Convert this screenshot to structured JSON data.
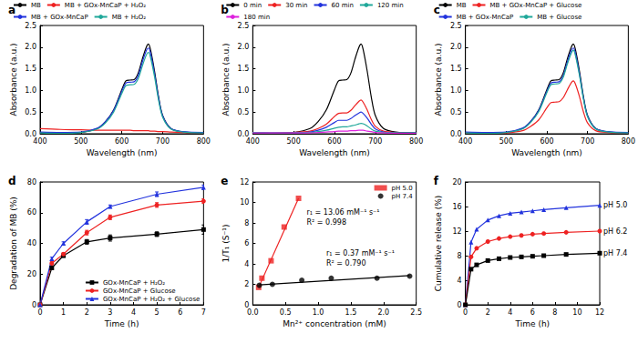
{
  "chart_data": [
    {
      "type": "line",
      "title": "a",
      "x_label": "Wavelength (nm)",
      "y_label": "Absorbance (a.u.)",
      "x": [
        400,
        450,
        500,
        540,
        560,
        580,
        600,
        610,
        620,
        630,
        640,
        650,
        660,
        665,
        670,
        680,
        690,
        700,
        720,
        750,
        800
      ],
      "series": [
        {
          "name": "MB",
          "color": "#000000",
          "values": [
            0.02,
            0.01,
            0.03,
            0.12,
            0.28,
            0.55,
            1.02,
            1.22,
            1.24,
            1.25,
            1.4,
            1.72,
            2.0,
            2.07,
            1.95,
            1.45,
            0.85,
            0.42,
            0.12,
            0.04,
            0.02
          ]
        },
        {
          "name": "MB + GOx-MnCaP + H₂O₂",
          "color": "#ee2222",
          "values": [
            0.12,
            0.1,
            0.09,
            0.08,
            0.08,
            0.08,
            0.08,
            0.08,
            0.08,
            0.07,
            0.07,
            0.07,
            0.07,
            0.07,
            0.06,
            0.06,
            0.05,
            0.05,
            0.04,
            0.03,
            0.02
          ]
        },
        {
          "name": "MB + GOx-MnCaP",
          "color": "#2233dd",
          "values": [
            0.04,
            0.03,
            0.04,
            0.13,
            0.28,
            0.54,
            0.98,
            1.17,
            1.19,
            1.2,
            1.34,
            1.65,
            1.92,
            1.98,
            1.87,
            1.39,
            0.82,
            0.41,
            0.12,
            0.05,
            0.03
          ]
        },
        {
          "name": "MB + H₂O₂",
          "color": "#20a89a",
          "values": [
            0.02,
            0.01,
            0.03,
            0.11,
            0.25,
            0.5,
            0.93,
            1.11,
            1.13,
            1.14,
            1.27,
            1.56,
            1.82,
            1.88,
            1.77,
            1.32,
            0.77,
            0.38,
            0.11,
            0.04,
            0.02
          ]
        }
      ],
      "xlim": [
        400,
        800
      ],
      "xticks": [
        400,
        500,
        600,
        700,
        800
      ],
      "ylim": [
        0,
        2.5
      ],
      "yticks": [
        {
          "value": 0,
          "label": "0.0"
        },
        0.5,
        {
          "value": 1,
          "label": "1.0"
        },
        1.5,
        {
          "value": 2,
          "label": "2.0"
        },
        2.5
      ],
      "grid": false,
      "legend": "top"
    },
    {
      "type": "line",
      "title": "b",
      "x_label": "Wavelength (nm)",
      "y_label": "Absorbance (a.u.)",
      "x": [
        400,
        450,
        500,
        540,
        560,
        580,
        600,
        610,
        620,
        630,
        640,
        650,
        660,
        665,
        670,
        680,
        690,
        700,
        720,
        750,
        800
      ],
      "series": [
        {
          "name": "0 min",
          "color": "#000000",
          "values": [
            0.02,
            0.01,
            0.03,
            0.12,
            0.28,
            0.55,
            1.02,
            1.22,
            1.24,
            1.25,
            1.4,
            1.72,
            2.0,
            2.07,
            1.95,
            1.45,
            0.85,
            0.42,
            0.12,
            0.04,
            0.02
          ]
        },
        {
          "name": "30 min",
          "color": "#ee2222",
          "values": [
            0.03,
            0.02,
            0.03,
            0.06,
            0.12,
            0.22,
            0.4,
            0.47,
            0.48,
            0.48,
            0.54,
            0.65,
            0.75,
            0.78,
            0.73,
            0.55,
            0.33,
            0.17,
            0.06,
            0.03,
            0.02
          ]
        },
        {
          "name": "60 min",
          "color": "#2233dd",
          "values": [
            0.03,
            0.02,
            0.02,
            0.04,
            0.08,
            0.15,
            0.26,
            0.31,
            0.31,
            0.31,
            0.35,
            0.42,
            0.48,
            0.5,
            0.47,
            0.36,
            0.22,
            0.11,
            0.04,
            0.02,
            0.02
          ]
        },
        {
          "name": "120 min",
          "color": "#20a89a",
          "values": [
            0.03,
            0.02,
            0.02,
            0.03,
            0.05,
            0.08,
            0.13,
            0.15,
            0.16,
            0.16,
            0.18,
            0.2,
            0.23,
            0.24,
            0.23,
            0.18,
            0.11,
            0.06,
            0.03,
            0.02,
            0.02
          ]
        },
        {
          "name": "180 min",
          "color": "#dd22dd",
          "values": [
            0.02,
            0.02,
            0.02,
            0.02,
            0.03,
            0.04,
            0.05,
            0.06,
            0.06,
            0.06,
            0.07,
            0.07,
            0.08,
            0.08,
            0.08,
            0.06,
            0.05,
            0.03,
            0.02,
            0.01,
            0.01
          ]
        }
      ],
      "xlim": [
        400,
        800
      ],
      "xticks": [
        400,
        500,
        600,
        700,
        800
      ],
      "ylim": [
        0,
        2.5
      ],
      "yticks": [
        {
          "value": 0,
          "label": "0.0"
        },
        0.5,
        {
          "value": 1,
          "label": "1.0"
        },
        1.5,
        {
          "value": 2,
          "label": "2.0"
        },
        2.5
      ],
      "grid": false,
      "legend": "top"
    },
    {
      "type": "line",
      "title": "c",
      "x_label": "Wavelength (nm)",
      "y_label": "Absorbance (a.u.)",
      "x": [
        400,
        450,
        500,
        540,
        560,
        580,
        600,
        610,
        620,
        630,
        640,
        650,
        660,
        665,
        670,
        680,
        690,
        700,
        720,
        750,
        800
      ],
      "series": [
        {
          "name": "MB",
          "color": "#000000",
          "values": [
            0.02,
            0.01,
            0.03,
            0.12,
            0.28,
            0.55,
            1.02,
            1.22,
            1.24,
            1.25,
            1.4,
            1.72,
            2.0,
            2.07,
            1.95,
            1.45,
            0.85,
            0.42,
            0.12,
            0.04,
            0.02
          ]
        },
        {
          "name": "MB + GOx-MnCaP + Glucose",
          "color": "#ee2222",
          "values": [
            0.02,
            0.01,
            0.02,
            0.07,
            0.17,
            0.32,
            0.6,
            0.72,
            0.73,
            0.74,
            0.83,
            1.01,
            1.18,
            1.22,
            1.15,
            0.86,
            0.5,
            0.25,
            0.07,
            0.03,
            0.02
          ]
        },
        {
          "name": "MB + GOx-MnCaP",
          "color": "#2233dd",
          "values": [
            0.04,
            0.03,
            0.04,
            0.13,
            0.28,
            0.54,
            0.98,
            1.17,
            1.19,
            1.2,
            1.34,
            1.65,
            1.92,
            1.98,
            1.87,
            1.39,
            0.82,
            0.41,
            0.12,
            0.05,
            0.03
          ]
        },
        {
          "name": "MB + Glucose",
          "color": "#20a89a",
          "values": [
            0.02,
            0.01,
            0.03,
            0.11,
            0.26,
            0.51,
            0.95,
            1.13,
            1.15,
            1.16,
            1.3,
            1.6,
            1.86,
            1.93,
            1.81,
            1.35,
            0.79,
            0.39,
            0.11,
            0.04,
            0.02
          ]
        }
      ],
      "xlim": [
        400,
        800
      ],
      "xticks": [
        400,
        500,
        600,
        700,
        800
      ],
      "ylim": [
        0,
        2.5
      ],
      "yticks": [
        {
          "value": 0,
          "label": "0.0"
        },
        0.5,
        {
          "value": 1,
          "label": "1.0"
        },
        1.5,
        {
          "value": 2,
          "label": "2.0"
        },
        2.5
      ],
      "grid": false,
      "legend": "top"
    },
    {
      "type": "line",
      "title": "d",
      "x_label": "Time (h)",
      "y_label": "Degradation of MB (%)",
      "x": [
        0,
        0.5,
        1,
        2,
        3,
        5,
        7
      ],
      "series": [
        {
          "name": "GOx-MnCaP + H₂O₂",
          "color": "#000000",
          "marker": "square",
          "values": [
            0,
            24,
            32,
            41,
            43.5,
            46,
            49
          ],
          "errors": [
            0,
            1,
            1,
            1.5,
            2,
            1.5,
            3
          ]
        },
        {
          "name": "GOx-MnCaP + Glucose",
          "color": "#ee2222",
          "marker": "circle",
          "values": [
            0,
            27,
            33,
            47,
            57,
            65,
            67.5
          ],
          "errors": [
            0,
            1,
            1,
            1.5,
            1.5,
            1.5,
            1.5
          ]
        },
        {
          "name": "GOx-MnCaP + H₂O₂ + Glucose",
          "color": "#2233dd",
          "marker": "triangle",
          "values": [
            0,
            30,
            40,
            54,
            64,
            72,
            76.5
          ],
          "errors": [
            0,
            1,
            1,
            1.5,
            1,
            1.5,
            1.5
          ]
        }
      ],
      "xlim": [
        0,
        7
      ],
      "xticks": [
        0,
        1,
        2,
        3,
        4,
        5,
        6,
        7
      ],
      "ylim": [
        0,
        80
      ],
      "yticks": [
        0,
        20,
        40,
        60,
        80
      ],
      "grid": false,
      "legend": "lower right"
    },
    {
      "type": "scatter",
      "title": "e",
      "x_label": "Mn²⁺ concentration (mM)",
      "y_label": "1/T₁ (S⁻¹)",
      "series": [
        {
          "name": "pH 5.0",
          "color": "#ee2222",
          "marker": "square",
          "x": [
            0.09,
            0.14,
            0.28,
            0.48,
            0.7
          ],
          "values": [
            1.7,
            2.6,
            4.3,
            7.6,
            10.4
          ],
          "fit": {
            "x": [
              0.09,
              0.7
            ],
            "values": [
              1.7,
              10.4
            ]
          }
        },
        {
          "name": "pH 7.4",
          "color": "#000000",
          "marker": "circle",
          "x": [
            0.1,
            0.3,
            0.75,
            1.2,
            1.9,
            2.4
          ],
          "values": [
            1.9,
            2.0,
            2.4,
            2.6,
            2.6,
            2.8
          ],
          "fit": {
            "x": [
              0.1,
              2.4
            ],
            "values": [
              1.95,
              2.85
            ]
          }
        }
      ],
      "annotations": [
        "r₁ = 13.06 mM⁻¹ s⁻¹",
        "R² = 0.998",
        "r₁ = 0.37 mM⁻¹ s⁻¹",
        "R² = 0.790"
      ],
      "xlim": [
        0,
        2.5
      ],
      "xticks": [
        {
          "value": 0,
          "label": "0.0"
        },
        0.5,
        {
          "value": 1,
          "label": "1.0"
        },
        1.5,
        {
          "value": 2,
          "label": "2.0"
        },
        2.5
      ],
      "ylim": [
        0,
        12
      ],
      "yticks": [
        0,
        2,
        4,
        6,
        8,
        10,
        12
      ],
      "grid": false,
      "legend": "upper right"
    },
    {
      "type": "line",
      "title": "f",
      "x_label": "Time (h)",
      "y_label": "Cumulative release (%)",
      "x": [
        0,
        0.5,
        1,
        2,
        3,
        4,
        5,
        6,
        7,
        9,
        12
      ],
      "series": [
        {
          "name": "pH 5.0",
          "color": "#2233dd",
          "marker": "triangle",
          "values": [
            0,
            10.2,
            12.3,
            13.8,
            14.5,
            14.9,
            15.1,
            15.3,
            15.5,
            15.8,
            16.2
          ]
        },
        {
          "name": "pH 6.2",
          "color": "#ee2222",
          "marker": "circle",
          "values": [
            0,
            7.8,
            9.2,
            10.3,
            10.8,
            11.1,
            11.3,
            11.5,
            11.6,
            11.8,
            12.0
          ]
        },
        {
          "name": "pH 7.4",
          "color": "#000000",
          "marker": "square",
          "values": [
            0,
            5.8,
            6.5,
            7.2,
            7.5,
            7.7,
            7.8,
            7.9,
            8.0,
            8.2,
            8.4
          ]
        }
      ],
      "xlim": [
        0,
        12
      ],
      "xticks": [
        0,
        2,
        4,
        6,
        8,
        10,
        12
      ],
      "ylim": [
        0,
        20
      ],
      "yticks": [
        0,
        4,
        8,
        12,
        16,
        20
      ],
      "grid": false
    }
  ]
}
